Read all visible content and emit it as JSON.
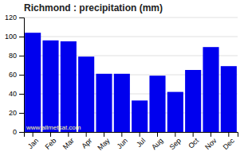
{
  "chart_data": {
    "type": "bar",
    "title": "Richmond : precipitation (mm)",
    "categories": [
      "Jan",
      "Feb",
      "Mar",
      "Apr",
      "May",
      "Jun",
      "Jul",
      "Aug",
      "Sep",
      "Oct",
      "Nov",
      "Dec"
    ],
    "values": [
      104,
      96,
      95,
      79,
      61,
      61,
      33,
      59,
      42,
      65,
      89,
      69
    ],
    "color": "#0000ee",
    "ylim": [
      0,
      120
    ],
    "yticks": [
      0,
      20,
      40,
      60,
      80,
      100,
      120
    ],
    "grid": true,
    "annotations": [
      "www.allmetsat.com"
    ]
  }
}
